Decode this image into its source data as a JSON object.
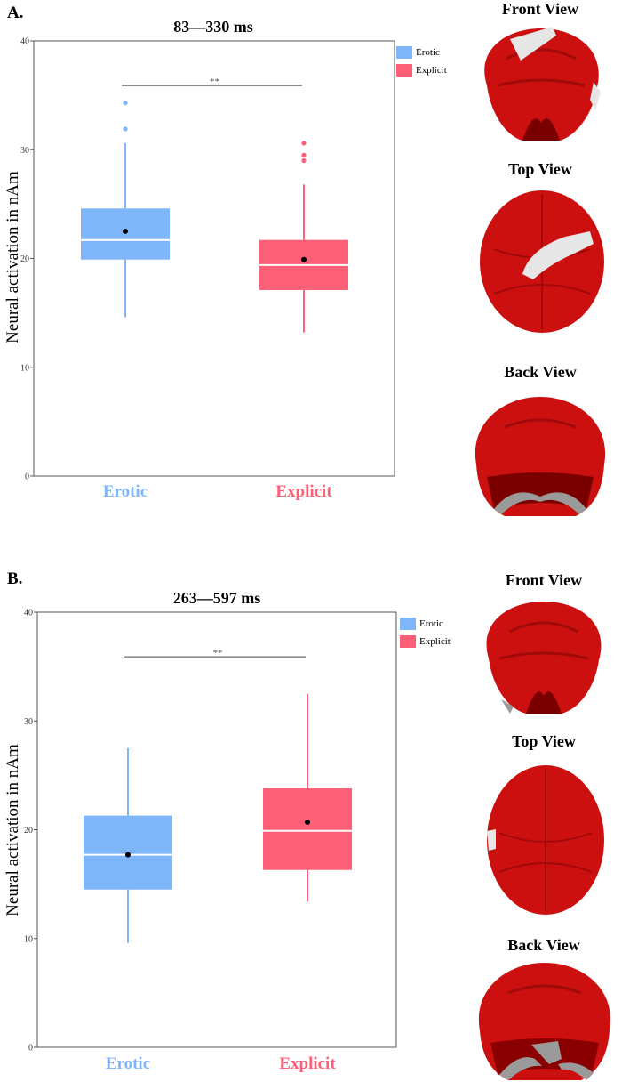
{
  "colors": {
    "erotic": "#7eb6f9",
    "explicit": "#fd5f77",
    "brain": "#cc1010",
    "brain_dark": "#8a0000",
    "brain_patch": "#e6e6e6"
  },
  "legend": {
    "items": [
      "Erotic",
      "Explicit"
    ]
  },
  "views": {
    "front": "Front View",
    "top": "Top View",
    "back": "Back View"
  },
  "panels": [
    {
      "letter": "A.",
      "title": "83—330 ms",
      "ylabel": "Neural activation in nAm",
      "significance": "**"
    },
    {
      "letter": "B.",
      "title": "263—597 ms",
      "ylabel": "Neural activation in nAm",
      "significance": "**"
    }
  ],
  "chart_data": [
    {
      "type": "box",
      "title": "83—330 ms",
      "ylabel": "Neural activation in nAm",
      "ylim": [
        0,
        40
      ],
      "yticks": [
        0,
        10,
        20,
        30,
        40
      ],
      "categories": [
        "Erotic",
        "Explicit"
      ],
      "boxes": [
        {
          "name": "Erotic",
          "whisker_low": 14.6,
          "q1": 19.9,
          "median": 21.7,
          "q3": 24.6,
          "whisker_high": 30.6,
          "mean": 22.5,
          "outliers": [
            31.9,
            34.3
          ]
        },
        {
          "name": "Explicit",
          "whisker_low": 13.2,
          "q1": 17.1,
          "median": 19.4,
          "q3": 21.7,
          "whisker_high": 26.8,
          "mean": 19.9,
          "outliers": [
            29.0,
            29.5,
            30.6
          ]
        }
      ],
      "significance": {
        "label": "**",
        "y": 35.9
      },
      "legend": [
        "Erotic",
        "Explicit"
      ]
    },
    {
      "type": "box",
      "title": "263—597 ms",
      "ylabel": "Neural activation in nAm",
      "ylim": [
        0,
        40
      ],
      "yticks": [
        0,
        10,
        20,
        30,
        40
      ],
      "categories": [
        "Erotic",
        "Explicit"
      ],
      "boxes": [
        {
          "name": "Erotic",
          "whisker_low": 9.6,
          "q1": 14.5,
          "median": 17.7,
          "q3": 21.3,
          "whisker_high": 27.5,
          "mean": 17.7,
          "outliers": []
        },
        {
          "name": "Explicit",
          "whisker_low": 13.4,
          "q1": 16.3,
          "median": 19.9,
          "q3": 23.8,
          "whisker_high": 32.5,
          "mean": 20.7,
          "outliers": []
        }
      ],
      "significance": {
        "label": "**",
        "y": 35.9
      },
      "legend": [
        "Erotic",
        "Explicit"
      ]
    }
  ]
}
